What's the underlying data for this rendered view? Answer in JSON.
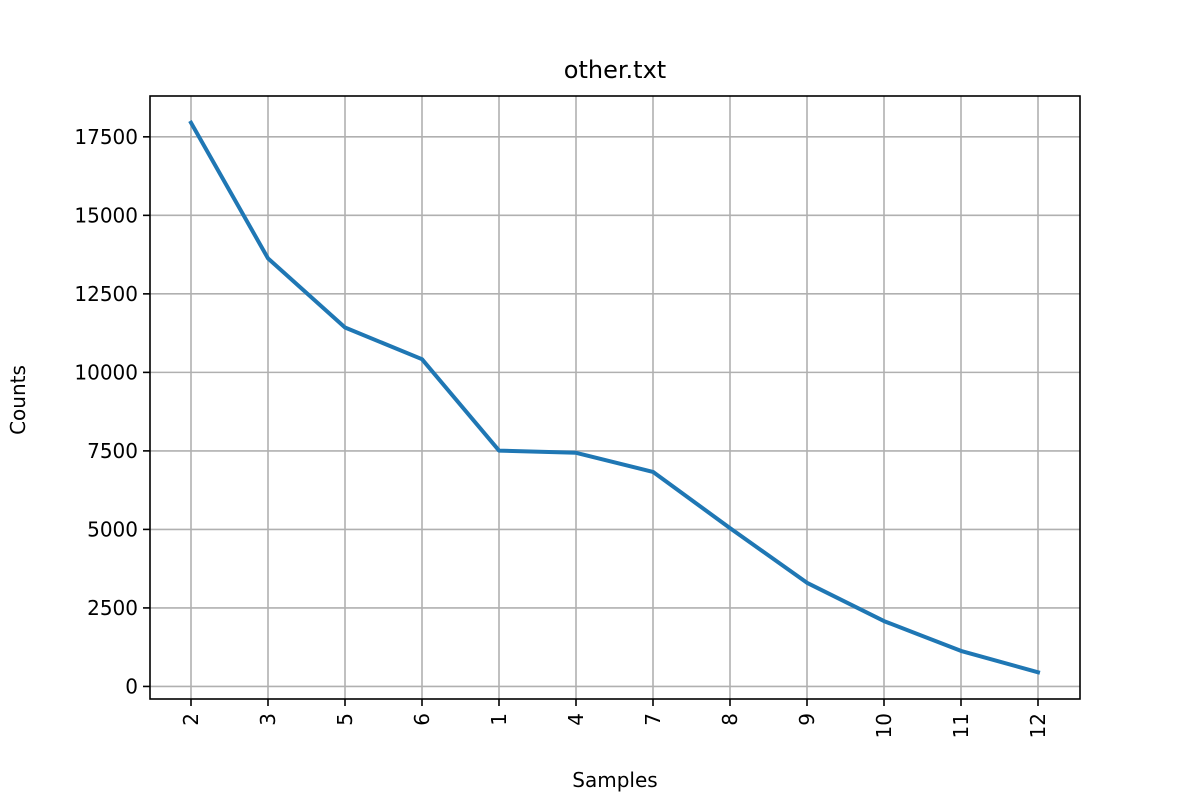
{
  "chart_data": {
    "type": "line",
    "title": "other.txt",
    "xlabel": "Samples",
    "ylabel": "Counts",
    "categories": [
      "2",
      "3",
      "5",
      "6",
      "1",
      "4",
      "7",
      "8",
      "9",
      "10",
      "11",
      "12"
    ],
    "series": [
      {
        "values": [
          17950,
          13630,
          11430,
          10420,
          7510,
          7440,
          6830,
          5040,
          3300,
          2080,
          1130,
          450
        ],
        "color": "#1f77b4"
      }
    ],
    "ylim": [
      -400,
      18800
    ],
    "yticks": [
      0,
      2500,
      5000,
      7500,
      10000,
      12500,
      15000,
      17500
    ],
    "grid": true,
    "legend": "none"
  }
}
